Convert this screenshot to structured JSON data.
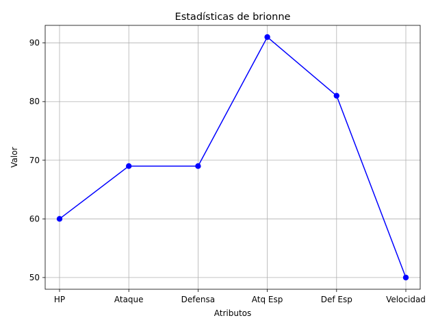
{
  "chart_data": {
    "type": "line",
    "title": "Estadísticas de brionne",
    "xlabel": "Atributos",
    "ylabel": "Valor",
    "categories": [
      "HP",
      "Ataque",
      "Defensa",
      "Atq Esp",
      "Def Esp",
      "Velocidad"
    ],
    "series": [
      {
        "values": [
          60,
          69,
          69,
          91,
          81,
          50
        ],
        "color": "#0000ff",
        "marker": "circle"
      }
    ],
    "ylim": [
      48.0,
      93.0
    ],
    "yticks": [
      50,
      60,
      70,
      80,
      90
    ],
    "grid": true,
    "legend": "none"
  }
}
